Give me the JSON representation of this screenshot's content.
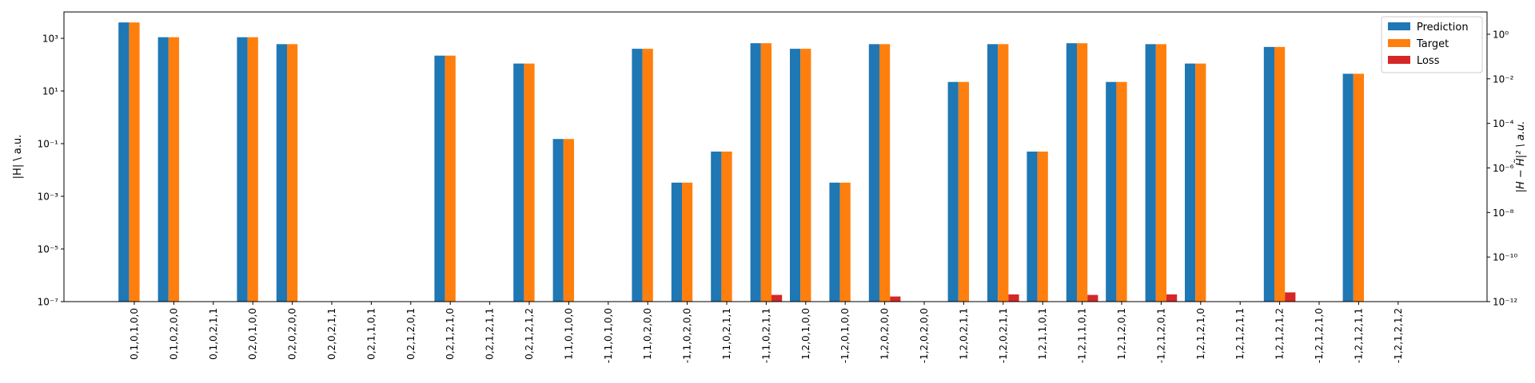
{
  "chart_data": {
    "type": "bar",
    "categories": [
      "0,1,0,1,0,0",
      "0,1,0,2,0,0",
      "0,1,0,2,1,1",
      "0,2,0,1,0,0",
      "0,2,0,2,0,0",
      "0,2,0,2,1,1",
      "0,2,1,1,0,1",
      "0,2,1,2,0,1",
      "0,2,1,2,1,0",
      "0,2,1,2,1,1",
      "0,2,1,2,1,2",
      "1,1,0,1,0,0",
      "-1,1,0,1,0,0",
      "1,1,0,2,0,0",
      "-1,1,0,2,0,0",
      "1,1,0,2,1,1",
      "-1,1,0,2,1,1",
      "1,2,0,1,0,0",
      "-1,2,0,1,0,0",
      "1,2,0,2,0,0",
      "-1,2,0,2,0,0",
      "1,2,0,2,1,1",
      "-1,2,0,2,1,1",
      "1,2,1,1,0,1",
      "-1,2,1,1,0,1",
      "1,2,1,2,0,1",
      "-1,2,1,2,0,1",
      "1,2,1,2,1,0",
      "1,2,1,2,1,1",
      "1,2,1,2,1,2",
      "-1,2,1,2,1,0",
      "-1,2,1,2,1,1",
      "-1,2,1,2,1,2"
    ],
    "series": [
      {
        "name": "Prediction",
        "axis": "left",
        "color": "#1f77b4",
        "values": [
          4000,
          1100,
          null,
          1100,
          600,
          null,
          null,
          null,
          220,
          null,
          110,
          0.15,
          null,
          400,
          0.0033,
          0.05,
          650,
          400,
          0.0033,
          600,
          null,
          22,
          600,
          0.05,
          650,
          22,
          600,
          110,
          null,
          470,
          null,
          45,
          null
        ]
      },
      {
        "name": "Target",
        "axis": "left",
        "color": "#ff7f0e",
        "values": [
          4000,
          1100,
          null,
          1100,
          600,
          null,
          null,
          null,
          220,
          null,
          110,
          0.15,
          null,
          400,
          0.0033,
          0.05,
          650,
          400,
          0.0033,
          600,
          null,
          22,
          600,
          0.05,
          650,
          22,
          600,
          110,
          null,
          470,
          null,
          45,
          null
        ]
      },
      {
        "name": "Loss",
        "axis": "right",
        "color": "#d62728",
        "values": [
          null,
          null,
          null,
          null,
          null,
          null,
          null,
          null,
          null,
          null,
          null,
          null,
          null,
          null,
          null,
          null,
          2e-12,
          null,
          null,
          1.7e-12,
          null,
          null,
          2.1e-12,
          null,
          2e-12,
          null,
          2.1e-12,
          null,
          null,
          2.6e-12,
          null,
          null,
          null
        ]
      }
    ],
    "ylabel": "|H| \\ a.u.",
    "ylabel_right": "|H − H̃|² \\ a.u.",
    "ylim": [
      1e-07,
      10000
    ],
    "ylim_right": [
      1e-12,
      10
    ],
    "yscale": "log",
    "yticks": [
      "10⁻⁷",
      "10⁻⁵",
      "10⁻³",
      "10⁻¹",
      "10¹",
      "10³"
    ],
    "yticks_right": [
      "10⁻¹²",
      "10⁻¹⁰",
      "10⁻⁸",
      "10⁻⁶",
      "10⁻⁴",
      "10⁻²",
      "10⁰"
    ],
    "grid": false,
    "legend": "top-right"
  }
}
